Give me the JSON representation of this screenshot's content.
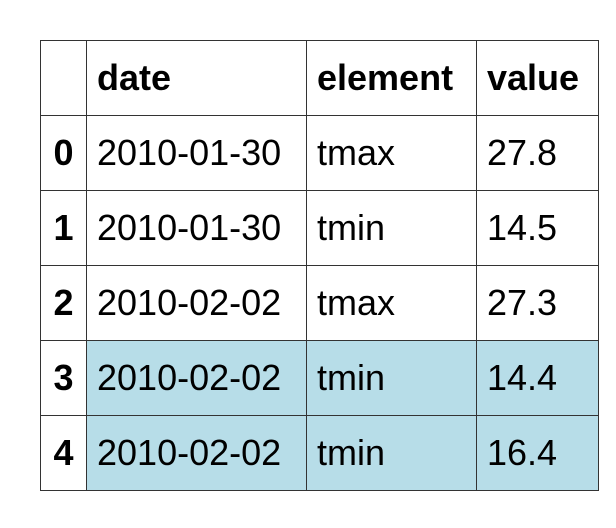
{
  "table": {
    "columns": [
      "",
      "date",
      "element",
      "value"
    ],
    "rows": [
      {
        "index": "0",
        "date": "2010-01-30",
        "element": "tmax",
        "value": "27.8",
        "highlighted": false
      },
      {
        "index": "1",
        "date": "2010-01-30",
        "element": "tmin",
        "value": "14.5",
        "highlighted": false
      },
      {
        "index": "2",
        "date": "2010-02-02",
        "element": "tmax",
        "value": "27.3",
        "highlighted": false
      },
      {
        "index": "3",
        "date": "2010-02-02",
        "element": "tmin",
        "value": "14.4",
        "highlighted": true
      },
      {
        "index": "4",
        "date": "2010-02-02",
        "element": "tmin",
        "value": "16.4",
        "highlighted": true
      }
    ],
    "highlight_color": "#b7dde8",
    "border_color": "#333333"
  }
}
